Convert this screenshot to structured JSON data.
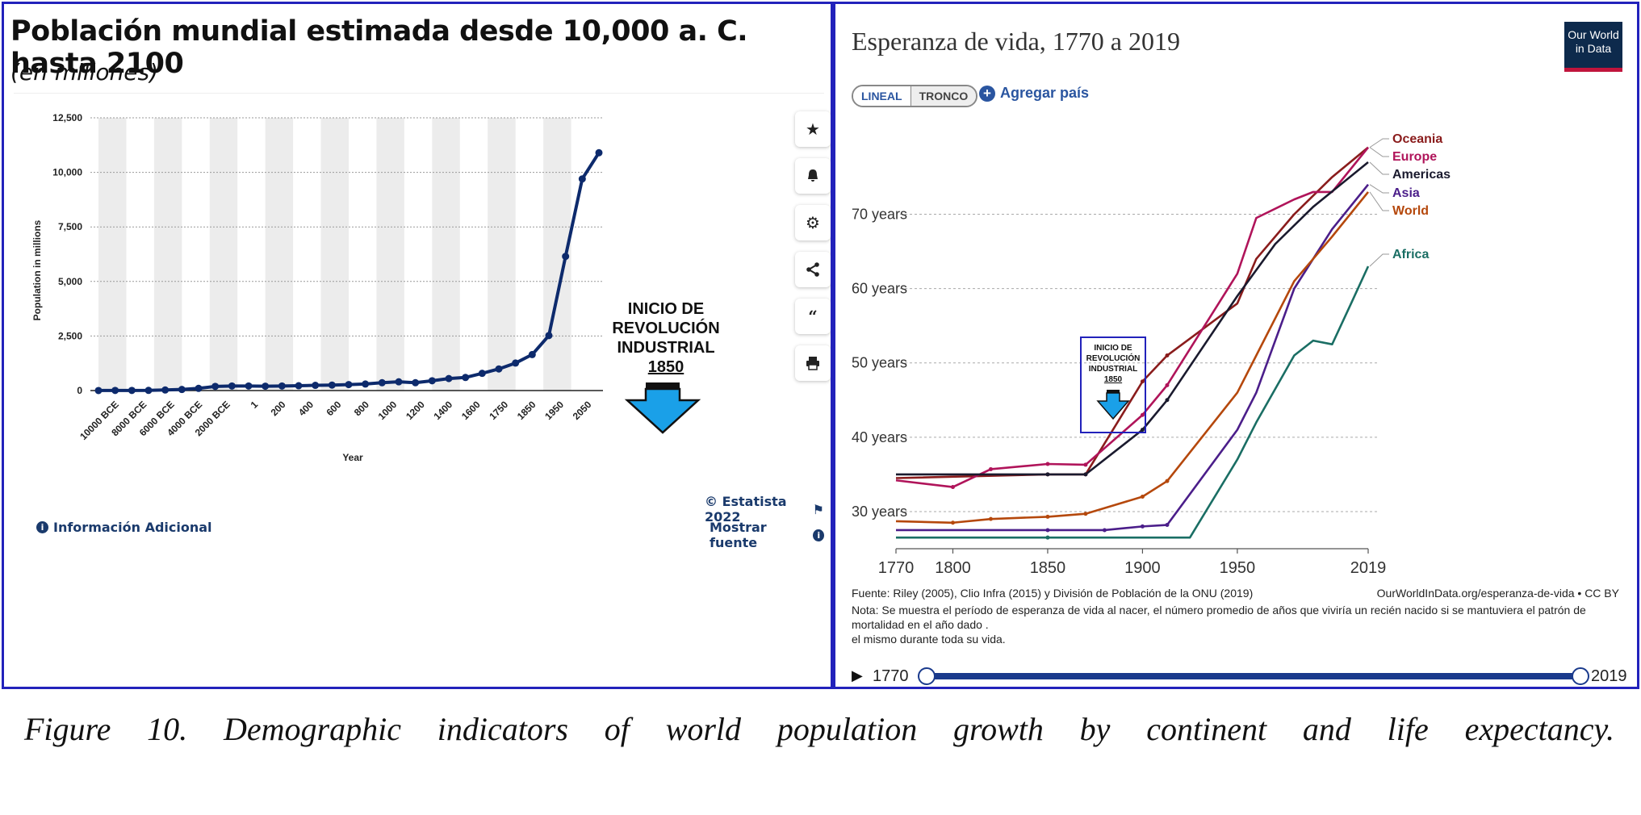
{
  "left": {
    "title": "Población mundial estimada desde 10,000 a. C. hasta 2100",
    "subtitle": "(en millones)",
    "annotation": {
      "lines": [
        "INICIO DE",
        "REVOLUCIÓN",
        "INDUSTRIAL",
        "1850"
      ]
    },
    "icons": [
      "star-icon",
      "bell-icon",
      "gear-icon",
      "share-icon",
      "quote-icon",
      "print-icon"
    ],
    "footer": {
      "credit": "© Estatista 2022",
      "info_link": "Información Adicional",
      "source_link": "Mostrar fuente"
    }
  },
  "right": {
    "title": "Esperanza de vida, 1770 a 2019",
    "logo": "Our World in Data",
    "toggle": {
      "on": "LINEAL",
      "off": "TRONCO"
    },
    "add_country": "Agregar país",
    "annotation": {
      "lines": [
        "INICIO DE",
        "REVOLUCIÓN",
        "INDUSTRIAL",
        "1850"
      ]
    },
    "source": "Fuente: Riley (2005), Clio Infra (2015) y División de Población de la ONU (2019)",
    "source_url": "OurWorldInData.org/esperanza-de-vida • CC BY",
    "note": "Nota: Se muestra el período de esperanza de vida al nacer, el número promedio de años que viviría un recién nacido si se mantuviera el patrón de mortalidad en el año dado .",
    "note2": "el mismo durante toda su vida.",
    "timeline": {
      "start": "1770",
      "end": "2019"
    }
  },
  "caption": "Figure 10. Demographic indicators of world population growth by continent and life expectancy.",
  "chart_data": [
    {
      "type": "line",
      "title": "Población mundial estimada desde 10,000 a. C. hasta 2100",
      "subtitle": "(en millones)",
      "xlabel": "Year",
      "ylabel": "Population in millions",
      "ylim": [
        0,
        12500
      ],
      "yticks": [
        "0",
        "2,500",
        "5,000",
        "7,500",
        "10,000",
        "12,500"
      ],
      "ytick_values": [
        0,
        2500,
        5000,
        7500,
        10000,
        12500
      ],
      "xtick_labels": [
        "10000 BCE",
        "8000 BCE",
        "6000 BCE",
        "4000 BCE",
        "2000 BCE",
        "1",
        "200",
        "400",
        "600",
        "800",
        "1000",
        "1200",
        "1400",
        "1600",
        "1750",
        "1850",
        "1950",
        "2050"
      ],
      "grid": true,
      "series": [
        {
          "color": "#0d2a6c",
          "values": [
            2,
            5,
            5,
            7,
            27,
            50,
            100,
            190,
            210,
            210,
            200,
            210,
            220,
            240,
            250,
            275,
            300,
            360,
            400,
            360,
            450,
            550,
            600,
            790,
            990,
            1260,
            1650,
            2520,
            6150,
            9700,
            10900
          ]
        }
      ]
    },
    {
      "type": "line",
      "title": "Esperanza de vida, 1770 a 2019",
      "xticks": [
        1770,
        1800,
        1850,
        1900,
        1950,
        2019
      ],
      "xlim": [
        1770,
        2019
      ],
      "ylim": [
        25,
        82
      ],
      "yticks": [
        "30 years",
        "40 years",
        "50 years",
        "60 years",
        "70 years"
      ],
      "ytick_values": [
        30,
        40,
        50,
        60,
        70
      ],
      "grid": true,
      "legend": "right",
      "series": [
        {
          "name": "Oceania",
          "color": "#8a1c1c",
          "points": [
            [
              1770,
              34.5
            ],
            [
              1850,
              35
            ],
            [
              1870,
              35
            ],
            [
              1900,
              47.5
            ],
            [
              1913,
              51
            ],
            [
              1950,
              58
            ],
            [
              1960,
              64
            ],
            [
              1980,
              70
            ],
            [
              2000,
              75
            ],
            [
              2019,
              79
            ]
          ]
        },
        {
          "name": "Europe",
          "color": "#b0145a",
          "points": [
            [
              1770,
              34.2
            ],
            [
              1800,
              33.3
            ],
            [
              1820,
              35.7
            ],
            [
              1850,
              36.4
            ],
            [
              1870,
              36.3
            ],
            [
              1900,
              43
            ],
            [
              1913,
              47
            ],
            [
              1950,
              62
            ],
            [
              1960,
              69.5
            ],
            [
              1980,
              72
            ],
            [
              1990,
              73
            ],
            [
              2000,
              73
            ],
            [
              2019,
              79
            ]
          ]
        },
        {
          "name": "Americas",
          "color": "#1a1a2e",
          "points": [
            [
              1770,
              35
            ],
            [
              1850,
              35
            ],
            [
              1870,
              35
            ],
            [
              1900,
              41
            ],
            [
              1913,
              45
            ],
            [
              1950,
              59
            ],
            [
              1970,
              66
            ],
            [
              1990,
              71
            ],
            [
              2019,
              77
            ]
          ]
        },
        {
          "name": "Asia",
          "color": "#4b1e8a",
          "points": [
            [
              1770,
              27.5
            ],
            [
              1850,
              27.5
            ],
            [
              1880,
              27.5
            ],
            [
              1900,
              28
            ],
            [
              1913,
              28.2
            ],
            [
              1950,
              41
            ],
            [
              1960,
              46
            ],
            [
              1980,
              60
            ],
            [
              2000,
              68
            ],
            [
              2019,
              74
            ]
          ]
        },
        {
          "name": "World",
          "color": "#b5480c",
          "points": [
            [
              1770,
              28.7
            ],
            [
              1800,
              28.5
            ],
            [
              1820,
              29
            ],
            [
              1850,
              29.3
            ],
            [
              1870,
              29.7
            ],
            [
              1900,
              32
            ],
            [
              1913,
              34.1
            ],
            [
              1950,
              46
            ],
            [
              1960,
              51
            ],
            [
              1980,
              61
            ],
            [
              2000,
              67
            ],
            [
              2019,
              73
            ]
          ]
        },
        {
          "name": "Africa",
          "color": "#1a6e64",
          "points": [
            [
              1770,
              26.5
            ],
            [
              1850,
              26.5
            ],
            [
              1920,
              26.5
            ],
            [
              1925,
              26.5
            ],
            [
              1950,
              37
            ],
            [
              1960,
              42
            ],
            [
              1980,
              51
            ],
            [
              1990,
              53
            ],
            [
              2000,
              52.5
            ],
            [
              2010,
              58
            ],
            [
              2019,
              63
            ]
          ]
        }
      ]
    }
  ]
}
